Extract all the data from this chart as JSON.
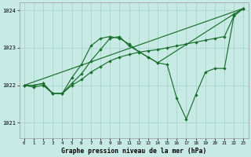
{
  "background_color": "#c8eae4",
  "grid_color": "#a8d5cc",
  "line_color": "#1a6e2e",
  "xlabel": "Graphe pression niveau de la mer (hPa)",
  "ylim": [
    1020.6,
    1024.2
  ],
  "xlim": [
    -0.5,
    23.5
  ],
  "yticks": [
    1021,
    1022,
    1023,
    1024
  ],
  "xticks": [
    0,
    1,
    2,
    3,
    4,
    5,
    6,
    7,
    8,
    9,
    10,
    11,
    12,
    13,
    14,
    15,
    16,
    17,
    18,
    19,
    20,
    21,
    22,
    23
  ],
  "series": [
    {
      "x": [
        0,
        1,
        2,
        3,
        4,
        5,
        6,
        7,
        8,
        9,
        10,
        11,
        12,
        13,
        14,
        22,
        23
      ],
      "y": [
        1022.0,
        1021.95,
        1022.0,
        1021.78,
        1021.78,
        1022.2,
        1022.55,
        1023.05,
        1023.25,
        1023.3,
        1023.25,
        1023.1,
        1022.9,
        1022.75,
        1022.6,
        1023.9,
        1024.05
      ]
    },
    {
      "x": [
        0,
        23
      ],
      "y": [
        1022.0,
        1024.05
      ]
    },
    {
      "x": [
        0,
        1,
        2,
        3,
        4,
        5,
        6,
        7,
        8,
        9,
        10,
        11,
        12,
        13,
        14,
        15,
        16,
        17,
        18,
        19,
        20,
        21,
        22,
        23
      ],
      "y": [
        1022.0,
        1022.0,
        1022.05,
        1021.78,
        1021.78,
        1022.0,
        1022.15,
        1022.35,
        1022.5,
        1022.65,
        1022.75,
        1022.82,
        1022.88,
        1022.92,
        1022.95,
        1023.0,
        1023.05,
        1023.1,
        1023.15,
        1023.2,
        1023.25,
        1023.3,
        1023.85,
        1024.05
      ]
    },
    {
      "x": [
        0,
        1,
        2,
        3,
        4,
        5,
        6,
        7,
        8,
        9,
        10,
        11,
        12,
        13,
        14,
        15,
        16,
        17,
        18,
        19,
        20,
        21,
        22,
        23
      ],
      "y": [
        1022.0,
        1022.0,
        1022.05,
        1021.78,
        1021.78,
        1022.05,
        1022.3,
        1022.65,
        1022.95,
        1023.25,
        1023.3,
        1023.05,
        1022.9,
        1022.75,
        1022.6,
        1022.55,
        1021.65,
        1021.1,
        1021.75,
        1022.35,
        1022.45,
        1022.45,
        1023.85,
        1024.05
      ]
    }
  ]
}
